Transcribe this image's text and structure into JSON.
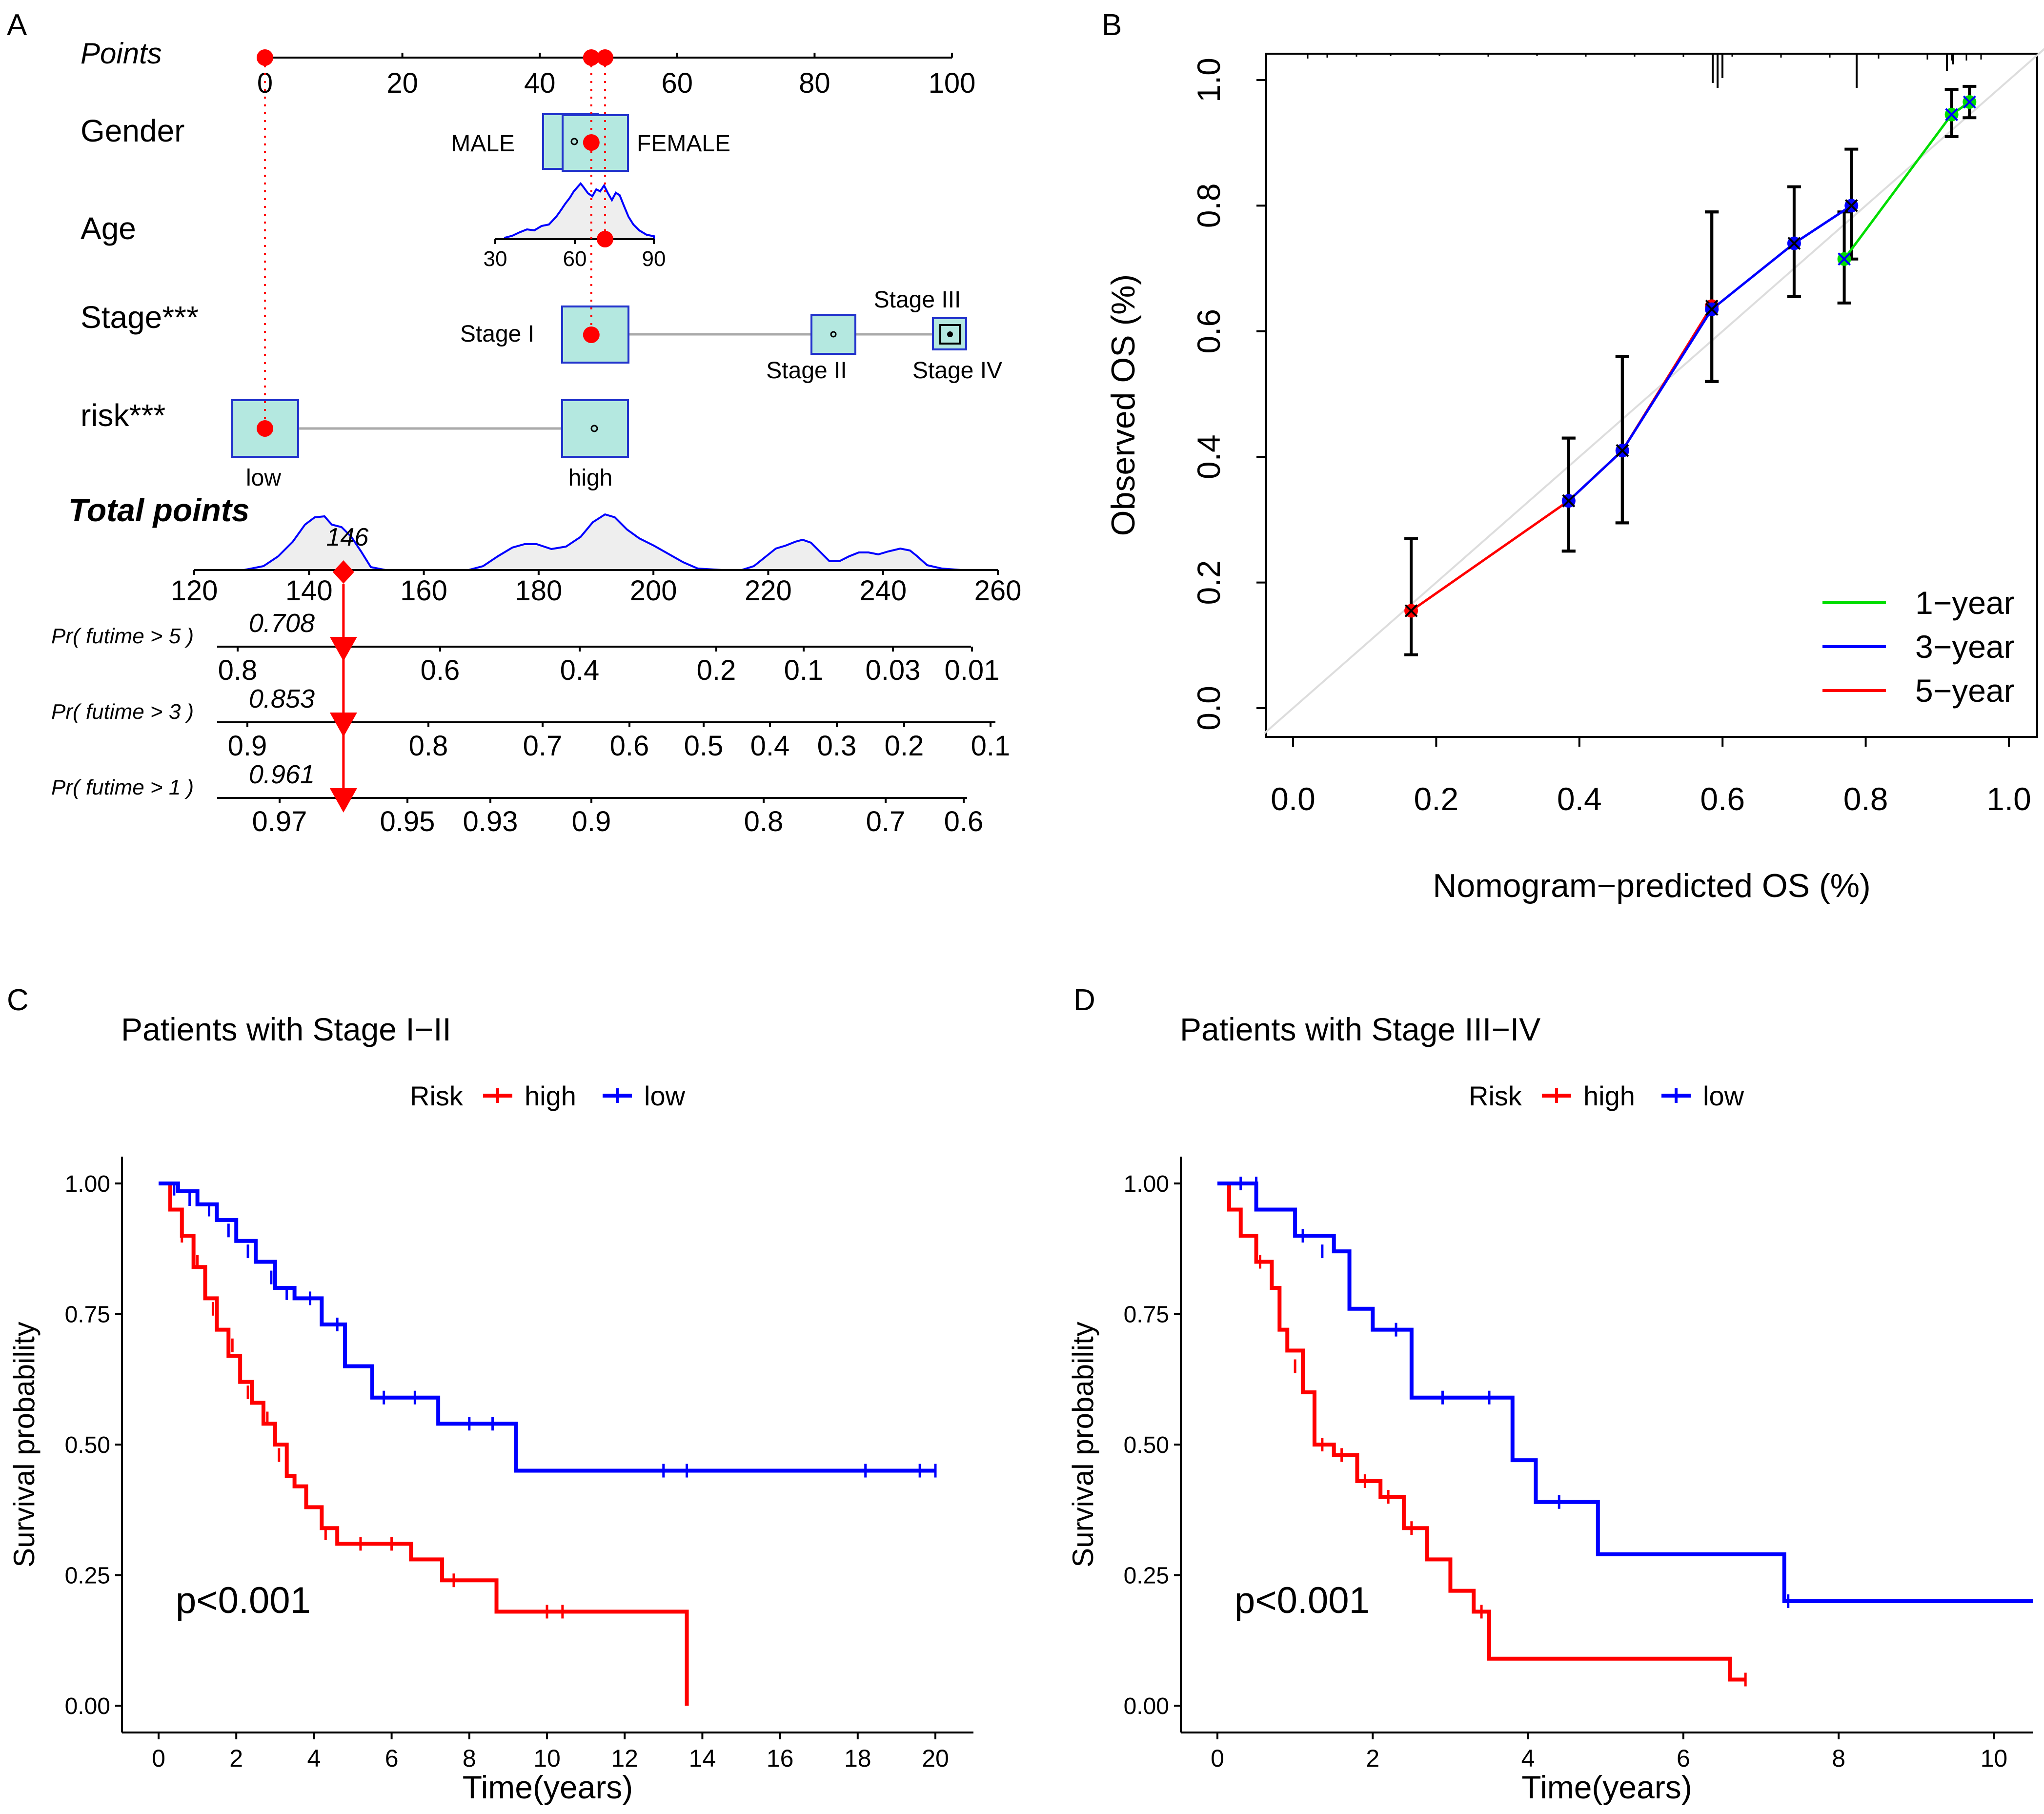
{
  "colors": {
    "red": "#ff0000",
    "blue": "#0000ff",
    "green": "#00dd00",
    "teal": "#b4e8e0",
    "boxblue": "#2233cc",
    "grid": "#dddddd"
  },
  "chart_data": [
    {
      "panel": "A",
      "type": "nomogram",
      "panel_label": "A",
      "points_axis": {
        "label": "Points",
        "ticks": [
          0,
          20,
          40,
          60,
          80,
          100
        ]
      },
      "variables": [
        {
          "name": "Gender",
          "levels": [
            "MALE",
            "FEMALE"
          ],
          "selected_points": 47.5
        },
        {
          "name": "Age",
          "ticks": [
            "30",
            "60",
            "90"
          ],
          "selected_points": 49.5
        },
        {
          "name": "Stage***",
          "levels": [
            "Stage I",
            "Stage II",
            "Stage III",
            "Stage IV"
          ],
          "level_points": [
            47.5,
            82,
            100,
            100
          ],
          "selected_points": 47.5
        },
        {
          "name": "risk***",
          "levels": [
            "low",
            "high"
          ],
          "level_points": [
            0,
            47.5
          ],
          "selected_points": 0
        }
      ],
      "total_points": {
        "label": "Total points",
        "ticks": [
          120,
          140,
          160,
          180,
          200,
          220,
          240,
          260
        ],
        "value": 146,
        "value_label": "146"
      },
      "predictions": [
        {
          "label": "Pr( futime > 5 )",
          "ticks": [
            "0.8",
            "0.6",
            "0.4",
            "0.2",
            "0.1",
            "0.03",
            "0.01"
          ],
          "value": 0.708,
          "value_label": "0.708"
        },
        {
          "label": "Pr( futime > 3 )",
          "ticks": [
            "0.9",
            "0.8",
            "0.7",
            "0.6",
            "0.5",
            "0.4",
            "0.3",
            "0.2",
            "0.1"
          ],
          "value": 0.853,
          "value_label": "0.853"
        },
        {
          "label": "Pr( futime > 1 )",
          "ticks": [
            "0.97",
            "0.95",
            "0.93",
            "0.9",
            "0.8",
            "0.7",
            "0.6"
          ],
          "value": 0.961,
          "value_label": "0.961"
        }
      ]
    },
    {
      "panel": "B",
      "type": "line",
      "panel_label": "B",
      "xlabel": "Nomogram−predicted OS (%)",
      "ylabel": "Observed OS (%)",
      "xlim": [
        0,
        1
      ],
      "ylim": [
        0,
        1
      ],
      "xticks": [
        "0.0",
        "0.2",
        "0.4",
        "0.6",
        "0.8",
        "1.0"
      ],
      "yticks": [
        "0.0",
        "0.2",
        "0.4",
        "0.6",
        "0.8",
        "1.0"
      ],
      "legend": [
        "1−year",
        "3−year",
        "5−year"
      ],
      "series": [
        {
          "name": "1-year",
          "x": [
            0.77,
            0.92,
            0.945
          ],
          "y": [
            0.715,
            0.945,
            0.965
          ],
          "err_lo": [
            0.645,
            0.91,
            0.94
          ],
          "err_hi": [
            0.79,
            0.985,
            0.99
          ]
        },
        {
          "name": "3-year",
          "x": [
            0.385,
            0.46,
            0.585,
            0.7,
            0.78
          ],
          "y": [
            0.33,
            0.41,
            0.635,
            0.74,
            0.8
          ],
          "err_lo": [
            0.25,
            0.295,
            0.52,
            0.655,
            0.715
          ],
          "err_hi": [
            0.43,
            0.56,
            0.79,
            0.83,
            0.89
          ]
        },
        {
          "name": "5-year",
          "x": [
            0.165,
            0.385,
            0.46,
            0.585
          ],
          "y": [
            0.155,
            0.33,
            0.41,
            0.64
          ],
          "err_lo": [
            0.085,
            0.25,
            0.295,
            0.52
          ],
          "err_hi": [
            0.27,
            0.43,
            0.56,
            0.79
          ]
        }
      ]
    },
    {
      "panel": "C",
      "type": "line",
      "panel_label": "C",
      "title": "Patients with Stage I−II",
      "legend_title": "Risk",
      "legend": [
        "high",
        "low"
      ],
      "xlabel": "Time(years)",
      "ylabel": "Survival probability",
      "pvalue": "p<0.001",
      "xlim": [
        0,
        20
      ],
      "ylim": [
        0,
        1
      ],
      "xticks": [
        0,
        2,
        4,
        6,
        8,
        10,
        12,
        14,
        16,
        18,
        20
      ],
      "yticks": [
        "0.00",
        "0.25",
        "0.50",
        "0.75",
        "1.00"
      ],
      "series": [
        {
          "name": "high",
          "x": [
            0,
            0.3,
            0.6,
            0.9,
            1.2,
            1.5,
            1.8,
            2.1,
            2.4,
            2.7,
            3.0,
            3.3,
            3.5,
            3.8,
            4.2,
            4.6,
            5.5,
            6.5,
            7.3,
            8.7,
            13.6
          ],
          "y": [
            1.0,
            0.95,
            0.9,
            0.84,
            0.78,
            0.72,
            0.67,
            0.62,
            0.58,
            0.54,
            0.5,
            0.44,
            0.42,
            0.38,
            0.34,
            0.31,
            0.31,
            0.28,
            0.24,
            0.18,
            0.0
          ]
        },
        {
          "name": "low",
          "x": [
            0,
            0.5,
            1.0,
            1.5,
            2.0,
            2.5,
            3.0,
            3.5,
            4.2,
            4.8,
            5.5,
            7.2,
            9.2,
            20
          ],
          "y": [
            1.0,
            0.985,
            0.96,
            0.93,
            0.89,
            0.85,
            0.8,
            0.78,
            0.73,
            0.65,
            0.59,
            0.54,
            0.45,
            0.45
          ]
        }
      ]
    },
    {
      "panel": "D",
      "type": "line",
      "panel_label": "D",
      "title": "Patients with Stage III−IV",
      "legend_title": "Risk",
      "legend": [
        "high",
        "low"
      ],
      "xlabel": "Time(years)",
      "ylabel": "Survival probability",
      "pvalue": "p<0.001",
      "xlim": [
        0,
        10.5
      ],
      "ylim": [
        0,
        1
      ],
      "xticks": [
        0,
        2,
        4,
        6,
        8,
        10
      ],
      "yticks": [
        "0.00",
        "0.25",
        "0.50",
        "0.75",
        "1.00"
      ],
      "series": [
        {
          "name": "high",
          "x": [
            0,
            0.15,
            0.3,
            0.5,
            0.7,
            0.8,
            0.9,
            1.1,
            1.25,
            1.5,
            1.8,
            2.1,
            2.4,
            2.7,
            3.0,
            3.3,
            3.5,
            6.6,
            6.8
          ],
          "y": [
            1.0,
            0.95,
            0.9,
            0.85,
            0.8,
            0.72,
            0.68,
            0.6,
            0.5,
            0.48,
            0.43,
            0.4,
            0.34,
            0.28,
            0.22,
            0.18,
            0.09,
            0.05,
            0.05
          ]
        },
        {
          "name": "low",
          "x": [
            0,
            0.5,
            1.0,
            1.5,
            1.7,
            2.0,
            2.5,
            3.2,
            3.8,
            4.1,
            4.9,
            7.3,
            10.5
          ],
          "y": [
            1.0,
            0.95,
            0.9,
            0.87,
            0.76,
            0.72,
            0.59,
            0.59,
            0.47,
            0.39,
            0.29,
            0.2,
            0.2
          ]
        }
      ]
    }
  ]
}
